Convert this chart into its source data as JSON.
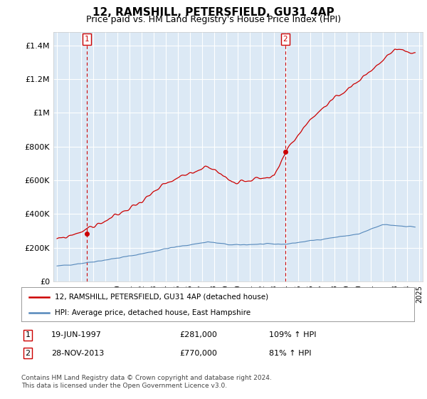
{
  "title": "12, RAMSHILL, PETERSFIELD, GU31 4AP",
  "subtitle": "Price paid vs. HM Land Registry's House Price Index (HPI)",
  "title_fontsize": 11,
  "subtitle_fontsize": 9,
  "ylabel_ticks": [
    "£0",
    "£200K",
    "£400K",
    "£600K",
    "£800K",
    "£1M",
    "£1.2M",
    "£1.4M"
  ],
  "ytick_values": [
    0,
    200000,
    400000,
    600000,
    800000,
    1000000,
    1200000,
    1400000
  ],
  "ylim": [
    0,
    1480000
  ],
  "xlim_start": 1994.7,
  "xlim_end": 2025.3,
  "background_color": "#ffffff",
  "plot_bg_color": "#dce9f5",
  "grid_color": "#ffffff",
  "purchase_1": {
    "date": "19-JUN-1997",
    "price": 281000,
    "label": "1",
    "x": 1997.47
  },
  "purchase_2": {
    "date": "28-NOV-2013",
    "price": 770000,
    "label": "2",
    "x": 2013.91
  },
  "legend_line1": "12, RAMSHILL, PETERSFIELD, GU31 4AP (detached house)",
  "legend_line2": "HPI: Average price, detached house, East Hampshire",
  "table_row1": [
    "1",
    "19-JUN-1997",
    "£281,000",
    "109% ↑ HPI"
  ],
  "table_row2": [
    "2",
    "28-NOV-2013",
    "£770,000",
    "81% ↑ HPI"
  ],
  "footer": "Contains HM Land Registry data © Crown copyright and database right 2024.\nThis data is licensed under the Open Government Licence v3.0.",
  "line_red_color": "#cc0000",
  "line_blue_color": "#5588bb",
  "marker_box_color": "#cc0000",
  "hpi_seed": 42,
  "price_seed": 99
}
